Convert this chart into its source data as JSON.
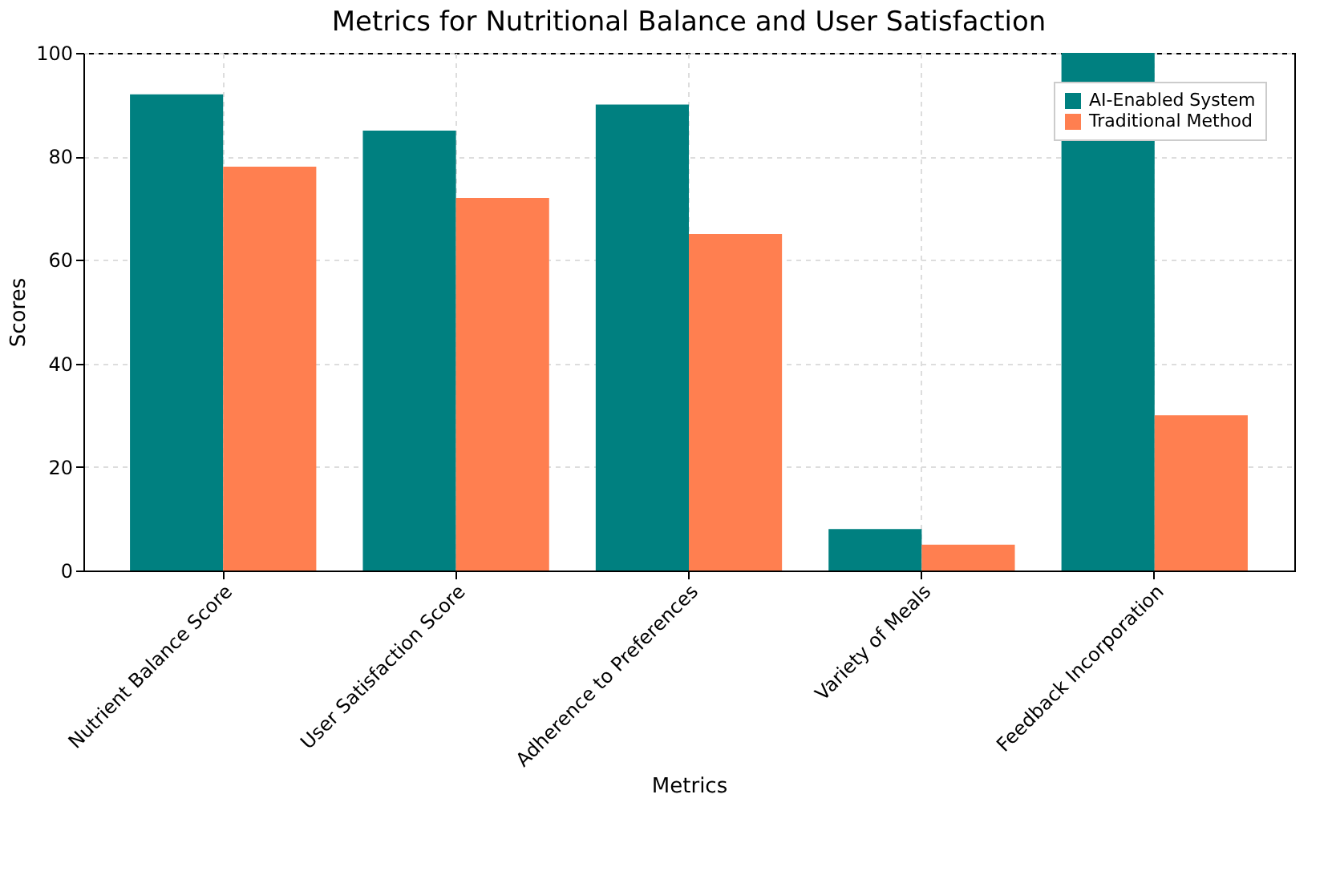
{
  "chart_data": {
    "type": "bar",
    "title": "Metrics for Nutritional Balance and User Satisfaction",
    "xlabel": "Metrics",
    "ylabel": "Scores",
    "categories": [
      "Nutrient Balance Score",
      "User Satisfaction Score",
      "Adherence to Preferences",
      "Variety of Meals",
      "Feedback Incorporation"
    ],
    "series": [
      {
        "name": "AI-Enabled System",
        "color": "#008080",
        "values": [
          92,
          85,
          90,
          8,
          100
        ]
      },
      {
        "name": "Traditional Method",
        "color": "#ff7f50",
        "values": [
          78,
          72,
          65,
          5,
          30
        ]
      }
    ],
    "ylim": [
      0,
      100
    ],
    "yticks": [
      0,
      20,
      40,
      60,
      80,
      100
    ],
    "grid": true,
    "legend": "top right"
  }
}
